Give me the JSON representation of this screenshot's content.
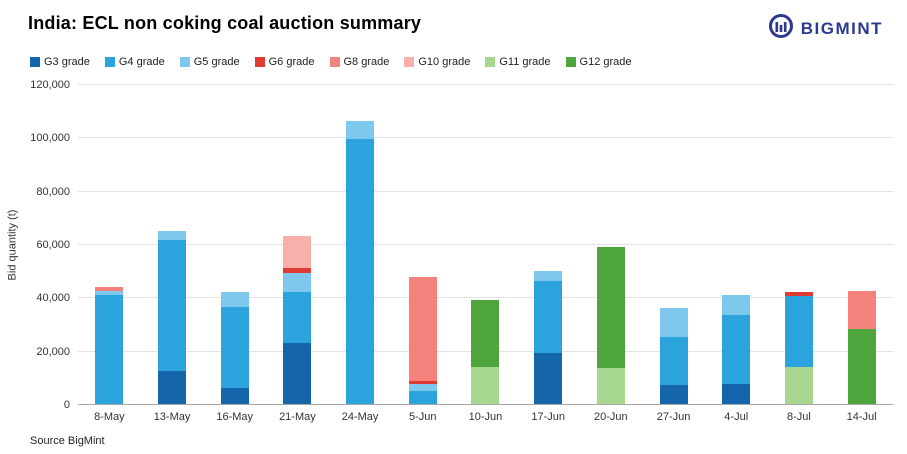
{
  "header": {
    "title": "India: ECL non coking coal auction summary",
    "brand": "BIGMINT"
  },
  "footer": {
    "source": "Source BigMint"
  },
  "chart_data": {
    "type": "bar",
    "stacked": true,
    "title": "India: ECL non coking coal auction summary",
    "xlabel": "",
    "ylabel": "Bid quantity (t)",
    "ylim": [
      0,
      120000
    ],
    "grid": true,
    "legend_position": "top",
    "ytick_values": [
      0,
      20000,
      40000,
      60000,
      80000,
      100000,
      120000
    ],
    "ytick_labels": [
      "0",
      "20,000",
      "40,000",
      "60,000",
      "80,000",
      "100,000",
      "120,000"
    ],
    "categories": [
      "8-May",
      "13-May",
      "16-May",
      "21-May",
      "24-May",
      "5-Jun",
      "10-Jun",
      "17-Jun",
      "20-Jun",
      "27-Jun",
      "4-Jul",
      "8-Jul",
      "14-Jul"
    ],
    "grades": [
      {
        "name": "G3 grade",
        "color": "#1565ab"
      },
      {
        "name": "G4 grade",
        "color": "#2ba3dd"
      },
      {
        "name": "G5 grade",
        "color": "#7ec8ee"
      },
      {
        "name": "G6 grade",
        "color": "#e03a34"
      },
      {
        "name": "G8 grade",
        "color": "#f4817c"
      },
      {
        "name": "G10 grade",
        "color": "#f7b1aa"
      },
      {
        "name": "G11 grade",
        "color": "#a7d78e"
      },
      {
        "name": "G12 grade",
        "color": "#4ea43d"
      }
    ],
    "bars": [
      {
        "category": "8-May",
        "segments": [
          {
            "grade": "G4 grade",
            "value": 41000
          },
          {
            "grade": "G5 grade",
            "value": 1500
          },
          {
            "grade": "G8 grade",
            "value": 1500
          }
        ]
      },
      {
        "category": "13-May",
        "segments": [
          {
            "grade": "G3 grade",
            "value": 12500
          },
          {
            "grade": "G4 grade",
            "value": 49000
          },
          {
            "grade": "G5 grade",
            "value": 3500
          }
        ]
      },
      {
        "category": "16-May",
        "segments": [
          {
            "grade": "G3 grade",
            "value": 6000
          },
          {
            "grade": "G4 grade",
            "value": 30500
          },
          {
            "grade": "G5 grade",
            "value": 5500
          }
        ]
      },
      {
        "category": "21-May",
        "segments": [
          {
            "grade": "G3 grade",
            "value": 23000
          },
          {
            "grade": "G4 grade",
            "value": 19000
          },
          {
            "grade": "G5 grade",
            "value": 7000
          },
          {
            "grade": "G6 grade",
            "value": 2000
          },
          {
            "grade": "G10 grade",
            "value": 12000
          }
        ]
      },
      {
        "category": "24-May",
        "segments": [
          {
            "grade": "G4 grade",
            "value": 99500
          },
          {
            "grade": "G5 grade",
            "value": 6500
          }
        ]
      },
      {
        "category": "5-Jun",
        "segments": [
          {
            "grade": "G4 grade",
            "value": 5000
          },
          {
            "grade": "G5 grade",
            "value": 2500
          },
          {
            "grade": "G6 grade",
            "value": 1000
          },
          {
            "grade": "G8 grade",
            "value": 39000
          }
        ]
      },
      {
        "category": "10-Jun",
        "segments": [
          {
            "grade": "G11 grade",
            "value": 14000
          },
          {
            "grade": "G12 grade",
            "value": 25000
          }
        ]
      },
      {
        "category": "17-Jun",
        "segments": [
          {
            "grade": "G3 grade",
            "value": 19000
          },
          {
            "grade": "G4 grade",
            "value": 27000
          },
          {
            "grade": "G5 grade",
            "value": 4000
          }
        ]
      },
      {
        "category": "20-Jun",
        "segments": [
          {
            "grade": "G11 grade",
            "value": 13500
          },
          {
            "grade": "G12 grade",
            "value": 45500
          }
        ]
      },
      {
        "category": "27-Jun",
        "segments": [
          {
            "grade": "G3 grade",
            "value": 7000
          },
          {
            "grade": "G4 grade",
            "value": 18000
          },
          {
            "grade": "G5 grade",
            "value": 11000
          }
        ]
      },
      {
        "category": "4-Jul",
        "segments": [
          {
            "grade": "G3 grade",
            "value": 7500
          },
          {
            "grade": "G4 grade",
            "value": 26000
          },
          {
            "grade": "G5 grade",
            "value": 7500
          }
        ]
      },
      {
        "category": "8-Jul",
        "segments": [
          {
            "grade": "G11 grade",
            "value": 14000
          },
          {
            "grade": "G4 grade",
            "value": 26500
          },
          {
            "grade": "G6 grade",
            "value": 1500
          }
        ]
      },
      {
        "category": "14-Jul",
        "segments": [
          {
            "grade": "G12 grade",
            "value": 28000
          },
          {
            "grade": "G8 grade",
            "value": 14500
          }
        ]
      }
    ]
  }
}
